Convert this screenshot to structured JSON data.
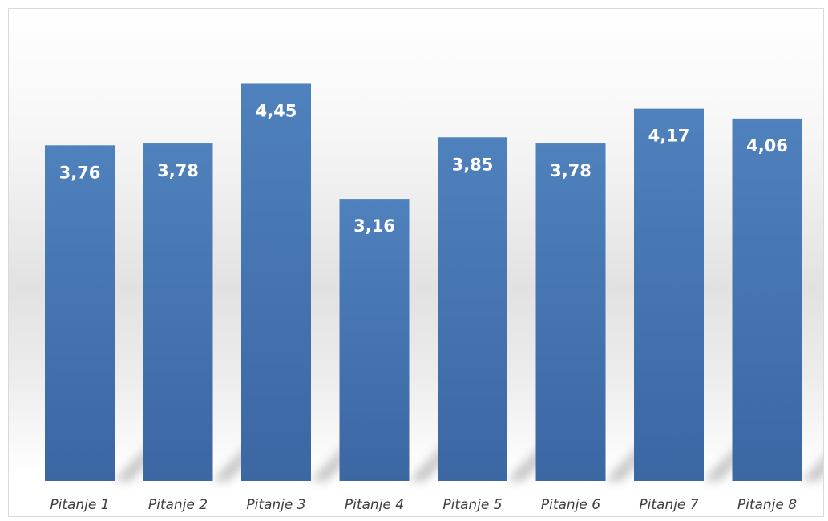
{
  "chart_data": {
    "type": "bar",
    "categories": [
      "Pitanje 1",
      "Pitanje 2",
      "Pitanje 3",
      "Pitanje 4",
      "Pitanje 5",
      "Pitanje 6",
      "Pitanje 7",
      "Pitanje 8"
    ],
    "values": [
      3.76,
      3.78,
      4.45,
      3.16,
      3.85,
      3.78,
      4.17,
      4.06
    ],
    "data_labels": [
      "3,76",
      "3,78",
      "4,45",
      "3,16",
      "3,85",
      "3,78",
      "4,17",
      "4,06"
    ],
    "title": "",
    "xlabel": "",
    "ylabel": "",
    "ylim": [
      0,
      4.93
    ],
    "grid": false,
    "legend": "none",
    "colors": {
      "bar_top": "#4f81bd",
      "bar_bottom": "#3b67a3",
      "value_label": "#ffffff",
      "category_label": "#404040",
      "border": "#d9d9d9"
    }
  }
}
